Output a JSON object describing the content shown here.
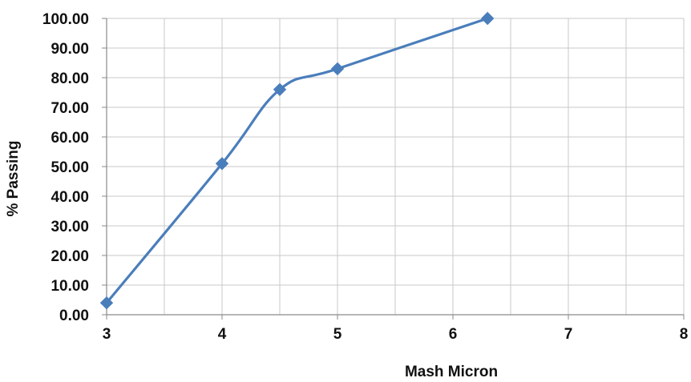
{
  "chart_data": {
    "type": "line",
    "title": "",
    "xlabel": "Mash Micron",
    "ylabel": "% Passing",
    "xlim": [
      3,
      8
    ],
    "ylim": [
      0,
      100
    ],
    "x_ticks": [
      "3",
      "4",
      "5",
      "6",
      "7",
      "8"
    ],
    "y_ticks": [
      "0.00",
      "10.00",
      "20.00",
      "30.00",
      "40.00",
      "50.00",
      "60.00",
      "70.00",
      "80.00",
      "90.00",
      "100.00"
    ],
    "grid": true,
    "legend": "none",
    "series": [
      {
        "color": "#4a7ebb",
        "marker": "diamond",
        "points": [
          {
            "x": 3,
            "y": 4
          },
          {
            "x": 4,
            "y": 51
          },
          {
            "x": 4.5,
            "y": 76
          },
          {
            "x": 5,
            "y": 83
          },
          {
            "x": 6.3,
            "y": 100
          }
        ]
      }
    ]
  }
}
